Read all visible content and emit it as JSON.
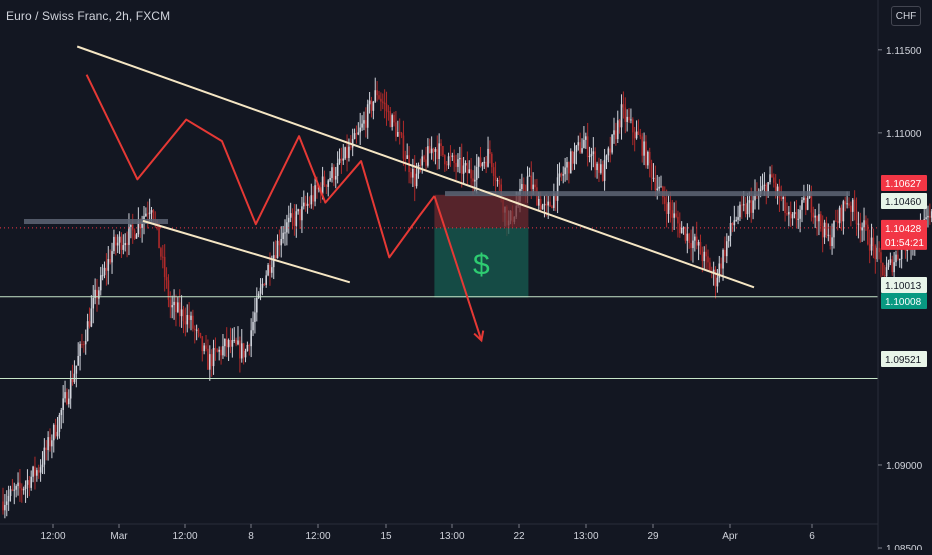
{
  "symbol_title": "Euro / Swiss Franc, 2h, FXCM",
  "currency_button": "CHF",
  "profit_symbol": "$",
  "colors": {
    "background": "#131722",
    "bull": "#d1d4dc",
    "bear": "#b02a2a",
    "wedge": "#f5e6c4",
    "wave": "#e53935",
    "support": "#c8e6c9",
    "resistance": "#5d6575",
    "profit_zone": "#17594f",
    "stop_zone": "#6e2a2f",
    "label_red": "#f23645",
    "label_teal": "#089981",
    "label_light": "#e8f5e9"
  },
  "chart_data": {
    "type": "candlestick",
    "title": "Euro / Swiss Franc, 2h, FXCM",
    "y_unit": "CHF",
    "ylim": [
      1.085,
      1.118
    ],
    "y_ticks": [
      "1.11500",
      "1.11000",
      "1.09000",
      "1.08500"
    ],
    "x_ticks": [
      "12:00",
      "Mar",
      "12:00",
      "8",
      "12:00",
      "15",
      "13:00",
      "22",
      "13:00",
      "29",
      "Apr",
      "6"
    ],
    "last_price": 1.10428,
    "countdown": "01:54:21",
    "price_labels": [
      {
        "name": "stop-level",
        "text": "1.10627",
        "price": 1.10627,
        "style": "red"
      },
      {
        "name": "resistance-level",
        "text": "1.10460",
        "price": 1.1046,
        "style": "light"
      },
      {
        "name": "support-level",
        "text": "1.10013",
        "price": 1.10013,
        "style": "light"
      },
      {
        "name": "target-level",
        "text": "1.10008",
        "price": 1.10008,
        "style": "teal"
      },
      {
        "name": "lower-support-level",
        "text": "1.09521",
        "price": 1.09521,
        "style": "light"
      }
    ],
    "price_path": [
      1.0878,
      1.0885,
      1.0898,
      1.0925,
      1.096,
      1.1,
      1.1032,
      1.104,
      1.1058,
      1.0995,
      1.0988,
      1.0962,
      1.0972,
      1.0968,
      1.1013,
      1.1042,
      1.1052,
      1.1068,
      1.108,
      1.1098,
      1.1125,
      1.1102,
      1.1072,
      1.1092,
      1.1082,
      1.1075,
      1.1088,
      1.1045,
      1.1072,
      1.1052,
      1.1078,
      1.1095,
      1.1075,
      1.1112,
      1.1095,
      1.1065,
      1.1045,
      1.1032,
      1.1012,
      1.1048,
      1.1058,
      1.1072,
      1.1045,
      1.106,
      1.1035,
      1.106,
      1.104,
      1.1015,
      1.1032,
      1.1042,
      1.1055,
      1.1045
    ],
    "wedge_upper": [
      [
        4.0,
        1.1152
      ],
      [
        40.0,
        1.1007
      ]
    ],
    "wedge_lower": [
      [
        7.5,
        1.1047
      ],
      [
        18.5,
        1.101
      ]
    ],
    "support_line": 1.10013,
    "lower_support_line": 1.09521,
    "resistance_zone": [
      1.1046,
      1.1064
    ],
    "wave_path": [
      [
        4.5,
        1.1135
      ],
      [
        7.2,
        1.1072
      ],
      [
        9.8,
        1.1108
      ],
      [
        11.7,
        1.1095
      ],
      [
        13.5,
        1.1045
      ],
      [
        15.8,
        1.1098
      ],
      [
        17.2,
        1.1058
      ],
      [
        19.1,
        1.1083
      ],
      [
        20.6,
        1.1025
      ],
      [
        22.2,
        1.105
      ],
      [
        23.0,
        1.1062
      ]
    ],
    "forecast_arrow": [
      [
        23.0,
        1.1062
      ],
      [
        25.5,
        1.0975
      ]
    ],
    "trade_box": {
      "x0": 23.0,
      "x1": 28.0,
      "entry": 1.10428,
      "stop": 1.10627,
      "target": 1.10008
    },
    "grid": false,
    "legend": "none"
  }
}
